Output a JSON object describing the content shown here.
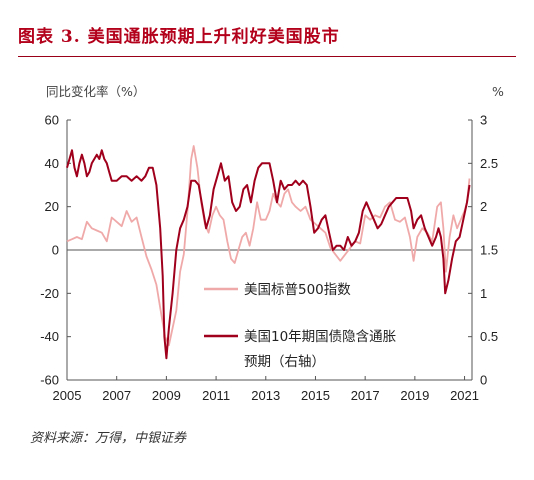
{
  "figure": {
    "title": "图表 3.  美国通胀预期上升利好美国股市",
    "source": "资料来源：万得，中银证券"
  },
  "chart_data": {
    "type": "line",
    "left_unit": "同比变化率（%）",
    "right_unit": "%",
    "left_axis": {
      "min": -60,
      "max": 60,
      "ticks": [
        60,
        40,
        20,
        0,
        -20,
        -40,
        -60
      ]
    },
    "right_axis": {
      "min": 0,
      "max": 3,
      "ticks": [
        "3",
        "2.5",
        "2",
        "1.5",
        "1",
        "0.5",
        "0"
      ]
    },
    "x_axis": {
      "min": 2005,
      "max": 2021.3,
      "ticks": [
        2005,
        2007,
        2009,
        2011,
        2013,
        2015,
        2017,
        2019,
        2021
      ]
    },
    "series": [
      {
        "name": "美国标普500指数",
        "axis": "left",
        "color": "#f0a9a9",
        "points": [
          [
            2005.0,
            4
          ],
          [
            2005.2,
            5
          ],
          [
            2005.4,
            6
          ],
          [
            2005.6,
            5
          ],
          [
            2005.8,
            13
          ],
          [
            2006.0,
            10
          ],
          [
            2006.2,
            9
          ],
          [
            2006.4,
            8
          ],
          [
            2006.6,
            4
          ],
          [
            2006.8,
            15
          ],
          [
            2007.0,
            13
          ],
          [
            2007.2,
            11
          ],
          [
            2007.4,
            18
          ],
          [
            2007.6,
            13
          ],
          [
            2007.8,
            15
          ],
          [
            2008.0,
            6
          ],
          [
            2008.2,
            -3
          ],
          [
            2008.4,
            -9
          ],
          [
            2008.6,
            -16
          ],
          [
            2008.8,
            -30
          ],
          [
            2008.95,
            -40
          ],
          [
            2009.1,
            -44
          ],
          [
            2009.25,
            -36
          ],
          [
            2009.4,
            -28
          ],
          [
            2009.55,
            -10
          ],
          [
            2009.7,
            -2
          ],
          [
            2009.85,
            18
          ],
          [
            2010.0,
            42
          ],
          [
            2010.1,
            48
          ],
          [
            2010.25,
            38
          ],
          [
            2010.4,
            22
          ],
          [
            2010.55,
            12
          ],
          [
            2010.7,
            8
          ],
          [
            2010.85,
            16
          ],
          [
            2011.0,
            20
          ],
          [
            2011.15,
            16
          ],
          [
            2011.3,
            14
          ],
          [
            2011.45,
            4
          ],
          [
            2011.6,
            -4
          ],
          [
            2011.75,
            -6
          ],
          [
            2011.9,
            0
          ],
          [
            2012.05,
            6
          ],
          [
            2012.2,
            8
          ],
          [
            2012.35,
            2
          ],
          [
            2012.5,
            10
          ],
          [
            2012.65,
            22
          ],
          [
            2012.8,
            14
          ],
          [
            2013.0,
            14
          ],
          [
            2013.15,
            18
          ],
          [
            2013.3,
            26
          ],
          [
            2013.45,
            22
          ],
          [
            2013.6,
            20
          ],
          [
            2013.75,
            26
          ],
          [
            2013.9,
            28
          ],
          [
            2014.05,
            22
          ],
          [
            2014.2,
            20
          ],
          [
            2014.4,
            18
          ],
          [
            2014.6,
            20
          ],
          [
            2014.8,
            14
          ],
          [
            2015.0,
            12
          ],
          [
            2015.2,
            10
          ],
          [
            2015.4,
            8
          ],
          [
            2015.6,
            1
          ],
          [
            2015.8,
            -2
          ],
          [
            2016.0,
            -5
          ],
          [
            2016.2,
            -2
          ],
          [
            2016.4,
            1
          ],
          [
            2016.6,
            4
          ],
          [
            2016.8,
            3
          ],
          [
            2017.0,
            16
          ],
          [
            2017.2,
            14
          ],
          [
            2017.4,
            16
          ],
          [
            2017.6,
            15
          ],
          [
            2017.8,
            20
          ],
          [
            2018.0,
            22
          ],
          [
            2018.2,
            14
          ],
          [
            2018.4,
            13
          ],
          [
            2018.6,
            15
          ],
          [
            2018.8,
            6
          ],
          [
            2018.95,
            -5
          ],
          [
            2019.1,
            6
          ],
          [
            2019.3,
            10
          ],
          [
            2019.5,
            8
          ],
          [
            2019.7,
            4
          ],
          [
            2019.9,
            20
          ],
          [
            2020.05,
            22
          ],
          [
            2020.15,
            10
          ],
          [
            2020.25,
            -10
          ],
          [
            2020.4,
            6
          ],
          [
            2020.55,
            16
          ],
          [
            2020.7,
            10
          ],
          [
            2020.85,
            14
          ],
          [
            2021.0,
            18
          ],
          [
            2021.1,
            22
          ],
          [
            2021.2,
            33
          ]
        ]
      },
      {
        "name": "美国10年期国债隐含通胀预期（右轴）",
        "legend_lines": [
          "美国10年期国债隐含通胀",
          "预期（右轴）"
        ],
        "axis": "right",
        "color": "#a0001c",
        "points": [
          [
            2005.0,
            2.45
          ],
          [
            2005.1,
            2.55
          ],
          [
            2005.2,
            2.65
          ],
          [
            2005.3,
            2.45
          ],
          [
            2005.4,
            2.35
          ],
          [
            2005.5,
            2.5
          ],
          [
            2005.6,
            2.6
          ],
          [
            2005.7,
            2.5
          ],
          [
            2005.8,
            2.35
          ],
          [
            2005.9,
            2.4
          ],
          [
            2006.0,
            2.5
          ],
          [
            2006.1,
            2.55
          ],
          [
            2006.2,
            2.6
          ],
          [
            2006.3,
            2.55
          ],
          [
            2006.4,
            2.65
          ],
          [
            2006.5,
            2.55
          ],
          [
            2006.6,
            2.5
          ],
          [
            2006.7,
            2.4
          ],
          [
            2006.8,
            2.3
          ],
          [
            2006.9,
            2.3
          ],
          [
            2007.0,
            2.3
          ],
          [
            2007.2,
            2.35
          ],
          [
            2007.4,
            2.35
          ],
          [
            2007.6,
            2.3
          ],
          [
            2007.8,
            2.35
          ],
          [
            2008.0,
            2.3
          ],
          [
            2008.15,
            2.35
          ],
          [
            2008.3,
            2.45
          ],
          [
            2008.45,
            2.45
          ],
          [
            2008.6,
            2.25
          ],
          [
            2008.75,
            1.75
          ],
          [
            2008.85,
            1.2
          ],
          [
            2008.92,
            0.5
          ],
          [
            2009.0,
            0.25
          ],
          [
            2009.1,
            0.6
          ],
          [
            2009.25,
            1.0
          ],
          [
            2009.4,
            1.5
          ],
          [
            2009.55,
            1.75
          ],
          [
            2009.7,
            1.85
          ],
          [
            2009.85,
            2.0
          ],
          [
            2010.0,
            2.3
          ],
          [
            2010.15,
            2.3
          ],
          [
            2010.3,
            2.25
          ],
          [
            2010.45,
            2.0
          ],
          [
            2010.6,
            1.75
          ],
          [
            2010.75,
            1.9
          ],
          [
            2010.9,
            2.2
          ],
          [
            2011.05,
            2.35
          ],
          [
            2011.2,
            2.5
          ],
          [
            2011.35,
            2.3
          ],
          [
            2011.5,
            2.35
          ],
          [
            2011.65,
            2.05
          ],
          [
            2011.8,
            1.95
          ],
          [
            2011.95,
            2.0
          ],
          [
            2012.1,
            2.2
          ],
          [
            2012.25,
            2.25
          ],
          [
            2012.4,
            2.05
          ],
          [
            2012.55,
            2.3
          ],
          [
            2012.7,
            2.45
          ],
          [
            2012.85,
            2.5
          ],
          [
            2013.0,
            2.5
          ],
          [
            2013.15,
            2.5
          ],
          [
            2013.3,
            2.3
          ],
          [
            2013.45,
            2.05
          ],
          [
            2013.6,
            2.3
          ],
          [
            2013.75,
            2.2
          ],
          [
            2013.9,
            2.25
          ],
          [
            2014.05,
            2.25
          ],
          [
            2014.2,
            2.3
          ],
          [
            2014.35,
            2.25
          ],
          [
            2014.5,
            2.3
          ],
          [
            2014.65,
            2.25
          ],
          [
            2014.8,
            2.0
          ],
          [
            2014.95,
            1.7
          ],
          [
            2015.1,
            1.75
          ],
          [
            2015.25,
            1.85
          ],
          [
            2015.4,
            1.9
          ],
          [
            2015.55,
            1.7
          ],
          [
            2015.7,
            1.5
          ],
          [
            2015.85,
            1.55
          ],
          [
            2016.0,
            1.55
          ],
          [
            2016.15,
            1.5
          ],
          [
            2016.3,
            1.65
          ],
          [
            2016.45,
            1.55
          ],
          [
            2016.6,
            1.6
          ],
          [
            2016.75,
            1.7
          ],
          [
            2016.9,
            1.95
          ],
          [
            2017.05,
            2.05
          ],
          [
            2017.2,
            1.95
          ],
          [
            2017.35,
            1.85
          ],
          [
            2017.5,
            1.75
          ],
          [
            2017.65,
            1.8
          ],
          [
            2017.8,
            1.9
          ],
          [
            2017.95,
            2.0
          ],
          [
            2018.1,
            2.05
          ],
          [
            2018.25,
            2.1
          ],
          [
            2018.4,
            2.1
          ],
          [
            2018.55,
            2.1
          ],
          [
            2018.7,
            2.1
          ],
          [
            2018.85,
            1.95
          ],
          [
            2018.95,
            1.75
          ],
          [
            2019.1,
            1.85
          ],
          [
            2019.25,
            1.9
          ],
          [
            2019.4,
            1.75
          ],
          [
            2019.55,
            1.65
          ],
          [
            2019.7,
            1.55
          ],
          [
            2019.85,
            1.65
          ],
          [
            2019.95,
            1.75
          ],
          [
            2020.05,
            1.65
          ],
          [
            2020.15,
            1.4
          ],
          [
            2020.22,
            1.0
          ],
          [
            2020.35,
            1.15
          ],
          [
            2020.5,
            1.4
          ],
          [
            2020.65,
            1.6
          ],
          [
            2020.8,
            1.65
          ],
          [
            2020.95,
            1.85
          ],
          [
            2021.1,
            2.05
          ],
          [
            2021.2,
            2.25
          ]
        ]
      }
    ]
  }
}
